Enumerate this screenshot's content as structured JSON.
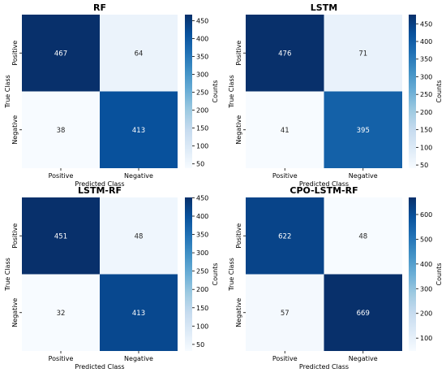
{
  "chart_data": [
    {
      "type": "heatmap",
      "title": "RF",
      "xlabel": "Predicted Class",
      "ylabel": "True Class",
      "x_categories": [
        "Positive",
        "Negative"
      ],
      "y_categories": [
        "Positive",
        "Negative"
      ],
      "values": [
        [
          467,
          64
        ],
        [
          38,
          413
        ]
      ],
      "colorbar": {
        "label": "Counts",
        "range": [
          38,
          467
        ],
        "ticks": [
          50,
          100,
          150,
          200,
          250,
          300,
          350,
          400,
          450
        ]
      },
      "colormap": "Blues"
    },
    {
      "type": "heatmap",
      "title": "LSTM",
      "xlabel": "Predicted Class",
      "ylabel": "True Class",
      "x_categories": [
        "Positive",
        "Negative"
      ],
      "y_categories": [
        "Positive",
        "Negative"
      ],
      "values": [
        [
          476,
          71
        ],
        [
          41,
          395
        ]
      ],
      "colorbar": {
        "label": "Counts",
        "range": [
          41,
          476
        ],
        "ticks": [
          50,
          100,
          150,
          200,
          250,
          300,
          350,
          400,
          450
        ]
      },
      "colormap": "Blues"
    },
    {
      "type": "heatmap",
      "title": "LSTM-RF",
      "xlabel": "Predicted Class",
      "ylabel": "True Class",
      "x_categories": [
        "Positive",
        "Negative"
      ],
      "y_categories": [
        "Positive",
        "Negative"
      ],
      "values": [
        [
          451,
          48
        ],
        [
          32,
          413
        ]
      ],
      "colorbar": {
        "label": "Counts",
        "range": [
          32,
          451
        ],
        "ticks": [
          50,
          100,
          150,
          200,
          250,
          300,
          350,
          400,
          450
        ]
      },
      "colormap": "Blues"
    },
    {
      "type": "heatmap",
      "title": "CPO-LSTM-RF",
      "xlabel": "Predicted Class",
      "ylabel": "True Class",
      "x_categories": [
        "Positive",
        "Negative"
      ],
      "y_categories": [
        "Positive",
        "Negative"
      ],
      "values": [
        [
          622,
          48
        ],
        [
          57,
          669
        ]
      ],
      "colorbar": {
        "label": "Counts",
        "range": [
          48,
          669
        ],
        "ticks": [
          100,
          200,
          300,
          400,
          500,
          600
        ]
      },
      "colormap": "Blues"
    }
  ]
}
